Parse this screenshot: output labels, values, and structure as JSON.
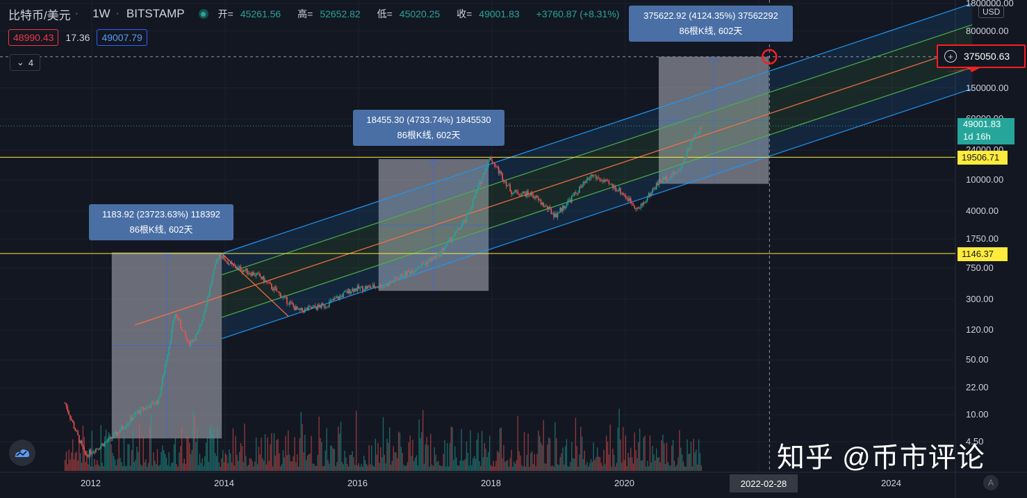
{
  "header": {
    "symbol": "比特币/美元",
    "timeframe": "1W",
    "exchange": "BITSTAMP",
    "open_label": "开=",
    "open": "45261.56",
    "high_label": "高=",
    "high": "52652.82",
    "low_label": "低=",
    "low": "45020.25",
    "close_label": "收=",
    "close": "49001.83",
    "change": "+3760.87 (+8.31%)"
  },
  "trade": {
    "sell": "48990.43",
    "spread": "17.36",
    "buy": "49007.79"
  },
  "indicator_toggle": {
    "icon": "chevron-down-icon",
    "count": "4"
  },
  "price_axis": {
    "currency": "USD",
    "ticks": [
      "1800000.00",
      "800000.00",
      "375050.63",
      "150000.00",
      "60000.00",
      "24000.00",
      "10000.00",
      "4000.00",
      "1750.00",
      "750.00",
      "300.00",
      "120.00",
      "50.00",
      "22.00",
      "10.00",
      "4.50"
    ]
  },
  "time_axis": {
    "ticks": [
      "2012",
      "2014",
      "2016",
      "2018",
      "2020",
      "2024"
    ],
    "crosshair_date": "2022-02-28"
  },
  "price_tags": {
    "crosshair": "375050.63",
    "last": "49001.83",
    "countdown": "1d 16h",
    "level_high": "19506.71",
    "level_low": "1146.37"
  },
  "callouts": [
    {
      "line1": "1183.92 (23723.63%) 118392",
      "line2": "86根K线, 602天"
    },
    {
      "line1": "18455.30 (4733.74%) 1845530",
      "line2": "86根K线, 602天"
    },
    {
      "line1": "375622.92 (4124.35%) 37562292",
      "line2": "86根K线, 602天"
    }
  ],
  "watermark": "知乎 @币市评论",
  "auto_scale": "A",
  "colors": {
    "background": "#131722",
    "up": "#26a69a",
    "down": "#ef5350",
    "channel_blue": "#2196f3",
    "channel_green": "#4caf50",
    "channel_orange": "#ff7043",
    "level_yellow": "#ffeb3b",
    "highlight_red": "#ff1e1e",
    "callout": "#4a6fa5"
  },
  "chart_data": {
    "type": "candlestick",
    "scale": "log",
    "x_range": [
      2011.5,
      2025.2
    ],
    "y_range": [
      4.5,
      1800000
    ],
    "price_path": [
      [
        2011.6,
        14
      ],
      [
        2011.9,
        3
      ],
      [
        2012.3,
        5
      ],
      [
        2012.7,
        11
      ],
      [
        2013.0,
        15
      ],
      [
        2013.25,
        200
      ],
      [
        2013.45,
        80
      ],
      [
        2013.6,
        110
      ],
      [
        2013.9,
        1146
      ],
      [
        2014.1,
        800
      ],
      [
        2014.5,
        600
      ],
      [
        2014.9,
        300
      ],
      [
        2015.1,
        210
      ],
      [
        2015.5,
        250
      ],
      [
        2015.9,
        400
      ],
      [
        2016.4,
        450
      ],
      [
        2016.8,
        700
      ],
      [
        2017.2,
        1100
      ],
      [
        2017.6,
        3000
      ],
      [
        2017.97,
        19506
      ],
      [
        2018.3,
        7000
      ],
      [
        2018.6,
        6500
      ],
      [
        2018.95,
        3500
      ],
      [
        2019.5,
        11500
      ],
      [
        2019.9,
        7500
      ],
      [
        2020.2,
        4200
      ],
      [
        2020.5,
        9500
      ],
      [
        2020.8,
        13000
      ],
      [
        2021.0,
        32000
      ],
      [
        2021.15,
        49001
      ]
    ],
    "horizontal_levels": [
      19506.71,
      1146.37
    ],
    "channel": {
      "start": [
        2013.95,
        1146
      ],
      "end": [
        2025.2,
        1800000
      ],
      "lower_start": [
        2014.95,
        180
      ],
      "lower_end": [
        2025.2,
        180000
      ]
    },
    "measure_boxes": [
      {
        "x0": 2012.3,
        "x1": 2013.95,
        "p0": 4.96,
        "p1": 1183.92
      },
      {
        "x0": 2016.3,
        "x1": 2017.95,
        "p0": 381.9,
        "p1": 18455.3
      },
      {
        "x0": 2020.5,
        "x1": 2022.15,
        "p0": 8913.0,
        "p1": 375622.92
      }
    ],
    "crosshair": {
      "x": 2022.16,
      "price": 375050.63
    }
  }
}
